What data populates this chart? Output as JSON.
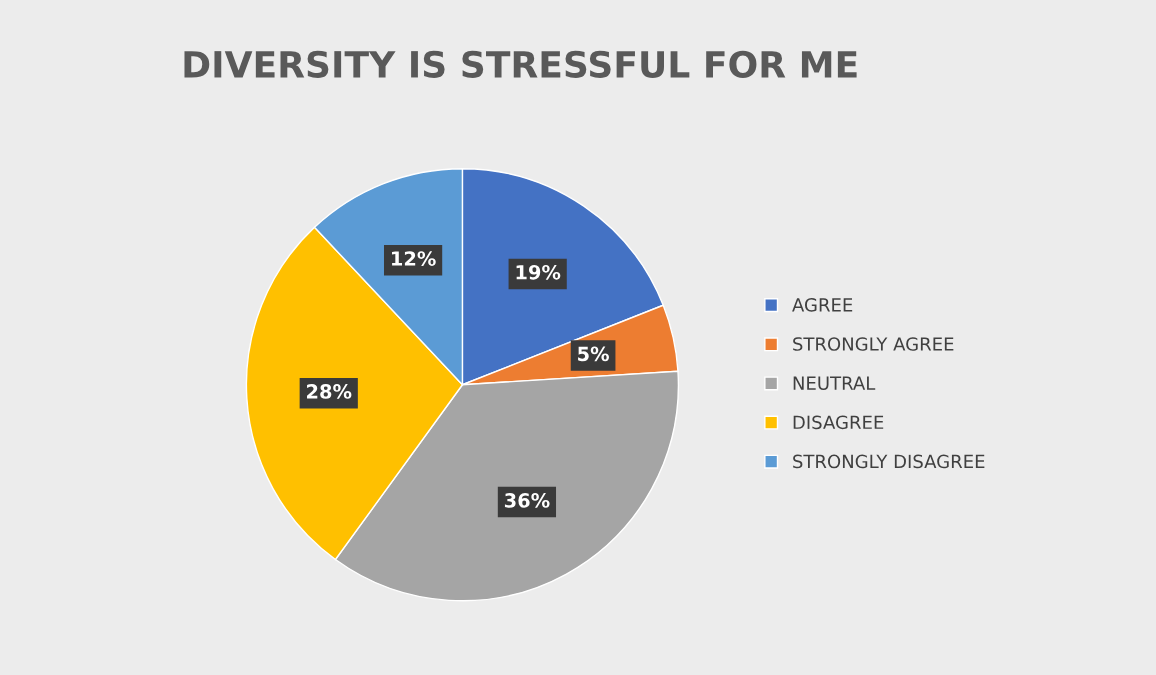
{
  "chart_data": {
    "type": "pie",
    "title": "DIVERSITY IS STRESSFUL FOR ME",
    "categories": [
      "AGREE",
      "STRONGLY AGREE",
      "NEUTRAL",
      "DISAGREE",
      "STRONGLY DISAGREE"
    ],
    "values": [
      19,
      5,
      36,
      28,
      12
    ],
    "colors": [
      "#4472c4",
      "#ed7d31",
      "#a5a5a5",
      "#ffc000",
      "#5b9bd5"
    ],
    "value_labels": [
      "19%",
      "5%",
      "36%",
      "28%",
      "12%"
    ],
    "legend": "right"
  }
}
